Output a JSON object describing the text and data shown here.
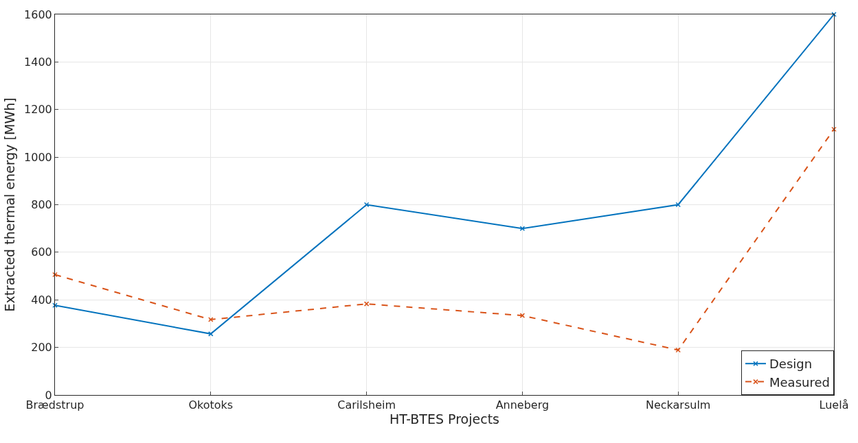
{
  "chart_data": {
    "type": "line",
    "xlabel": "HT-BTES Projects",
    "ylabel": "Extracted thermal energy [MWh]",
    "categories": [
      "Brædstrup",
      "Okotoks",
      "Carilsheim",
      "Anneberg",
      "Neckarsulm",
      "Luelå"
    ],
    "series": [
      {
        "name": "Design",
        "color": "#0072bd",
        "line_style": "solid",
        "values": [
          377,
          257,
          800,
          700,
          800,
          1600
        ]
      },
      {
        "name": "Measured",
        "color": "#d95319",
        "line_style": "dashed",
        "values": [
          506,
          317,
          383,
          334,
          189,
          1117
        ]
      }
    ],
    "ylim": [
      0,
      1600
    ],
    "yticks": [
      0,
      200,
      400,
      600,
      800,
      1000,
      1200,
      1400,
      1600
    ],
    "grid": true,
    "legend": "bottom right",
    "marker": "cross"
  }
}
